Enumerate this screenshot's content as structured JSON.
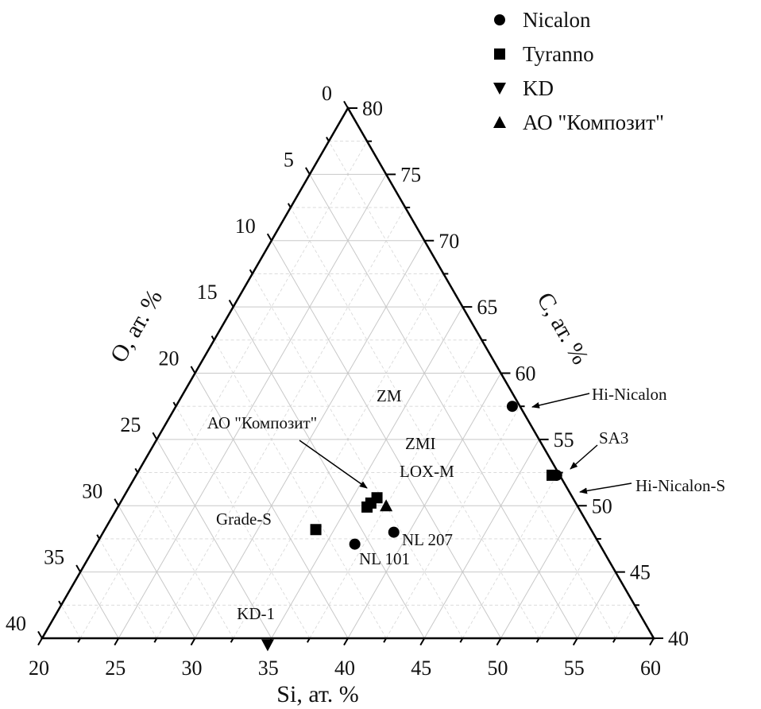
{
  "chart_data": {
    "type": "ternary-scatter",
    "axes": {
      "bottom": {
        "label": "Si, ат. %",
        "range": [
          20,
          60
        ],
        "ticks": [
          20,
          25,
          30,
          35,
          40,
          45,
          50,
          55,
          60
        ]
      },
      "left": {
        "label": "O, ат. %",
        "range": [
          0,
          40
        ],
        "ticks": [
          0,
          5,
          10,
          15,
          20,
          25,
          30,
          35,
          40
        ]
      },
      "right": {
        "label": "C, ат. %",
        "range": [
          40,
          80
        ],
        "ticks": [
          40,
          45,
          50,
          55,
          60,
          65,
          70,
          75,
          80
        ]
      }
    },
    "grid": true,
    "legend_position": "top-right",
    "legend": [
      {
        "name": "Nicalon",
        "marker": "circle"
      },
      {
        "name": "Tyranno",
        "marker": "square"
      },
      {
        "name": "KD",
        "marker": "triangle-down"
      },
      {
        "name": "АО \"Композит\"",
        "marker": "triangle-up"
      }
    ],
    "series": [
      {
        "name": "Nicalon",
        "marker": "circle",
        "points": [
          {
            "label": "Hi-Nicalon",
            "si": 42.0,
            "o": 0.5,
            "c": 57.5
          },
          {
            "label": "Hi-Nicalon-S",
            "si": 47.5,
            "o": 0.2,
            "c": 52.3
          },
          {
            "label": "NL 207",
            "si": 39.0,
            "o": 13.0,
            "c": 48.0
          },
          {
            "label": "NL 101",
            "si": 36.9,
            "o": 16.0,
            "c": 47.1
          }
        ]
      },
      {
        "name": "Tyranno",
        "marker": "square",
        "points": [
          {
            "label": "SA3",
            "si": 47.2,
            "o": 0.5,
            "c": 52.3
          },
          {
            "label": "ZM",
            "si": 36.3,
            "o": 13.8,
            "c": 49.9
          },
          {
            "label": "ZMI",
            "si": 36.4,
            "o": 13.4,
            "c": 50.2
          },
          {
            "label": "LOX-M",
            "si": 36.6,
            "o": 12.8,
            "c": 50.6
          },
          {
            "label": "Grade-S",
            "si": 33.8,
            "o": 18.0,
            "c": 48.2
          }
        ]
      },
      {
        "name": "KD",
        "marker": "triangle-down",
        "points": [
          {
            "label": "KD-1",
            "si": 35.0,
            "o": 25.5,
            "c": 39.5
          }
        ]
      },
      {
        "name": "АО \"Композит\"",
        "marker": "triangle-up",
        "points": [
          {
            "label": "АО \"Композит\"",
            "si": 37.5,
            "o": 12.5,
            "c": 50.0
          }
        ]
      }
    ]
  }
}
